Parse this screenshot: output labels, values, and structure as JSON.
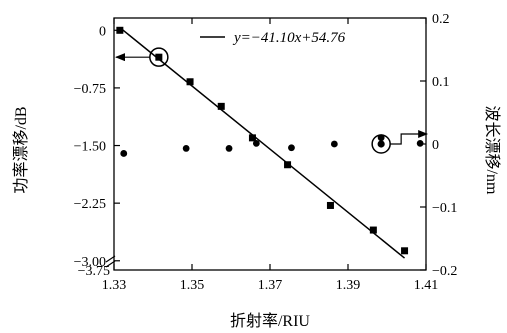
{
  "chart_data": {
    "type": "scatter",
    "xlabel": "折射率/RIU",
    "ylabel_left": "功率漂移/dB",
    "ylabel_right": "波长漂移/nm",
    "xlim": [
      1.33,
      1.41
    ],
    "ylim_left": [
      -3.12,
      0.16
    ],
    "ylim_right": [
      -0.2,
      0.2
    ],
    "x_ticks": [
      1.33,
      1.35,
      1.37,
      1.39,
      1.41
    ],
    "x_tick_labels": [
      "1.33",
      "1.35",
      "1.37",
      "1.39",
      "1.41"
    ],
    "y_left_ticks": [
      0,
      -0.75,
      -1.5,
      -2.25,
      -3.0
    ],
    "y_left_tick_labels": [
      "0",
      "−0.75",
      "−1.50",
      "−2.25",
      "−3.00"
    ],
    "y_left_break_label": "−3.75",
    "y_right_ticks": [
      0.2,
      0.1,
      0,
      -0.1,
      -0.2
    ],
    "y_right_tick_labels": [
      "0.2",
      "0.1",
      "0",
      "−0.1",
      "−0.2"
    ],
    "fit": {
      "slope": -41.1,
      "intercept": 54.76,
      "x_range": [
        1.3315,
        1.4045
      ],
      "axis": "left"
    },
    "legend": {
      "label": "y=−41.10x+54.76",
      "placement": "top"
    },
    "series": [
      {
        "axis": "left",
        "marker": "square",
        "x": [
          1.3315,
          1.3415,
          1.3495,
          1.3575,
          1.3655,
          1.3745,
          1.3855,
          1.3965,
          1.4045
        ],
        "values": [
          0.0,
          -0.35,
          -0.67,
          -0.99,
          -1.4,
          -1.75,
          -2.28,
          -2.6,
          -2.87
        ]
      },
      {
        "axis": "right",
        "marker": "circle",
        "x": [
          1.3325,
          1.3485,
          1.3595,
          1.3665,
          1.3755,
          1.3865,
          1.3985,
          1.4085
        ],
        "values": [
          -0.015,
          -0.007,
          -0.007,
          0.001,
          -0.006,
          0.0,
          0.01,
          0.001
        ]
      }
    ],
    "annotations": [
      {
        "kind": "circle-arrow",
        "x": 1.3415,
        "value": -0.35,
        "axis": "left",
        "direction": "left"
      },
      {
        "kind": "circle-arrow",
        "x": 1.3985,
        "value": 0.0,
        "axis": "right",
        "direction": "right"
      }
    ]
  }
}
